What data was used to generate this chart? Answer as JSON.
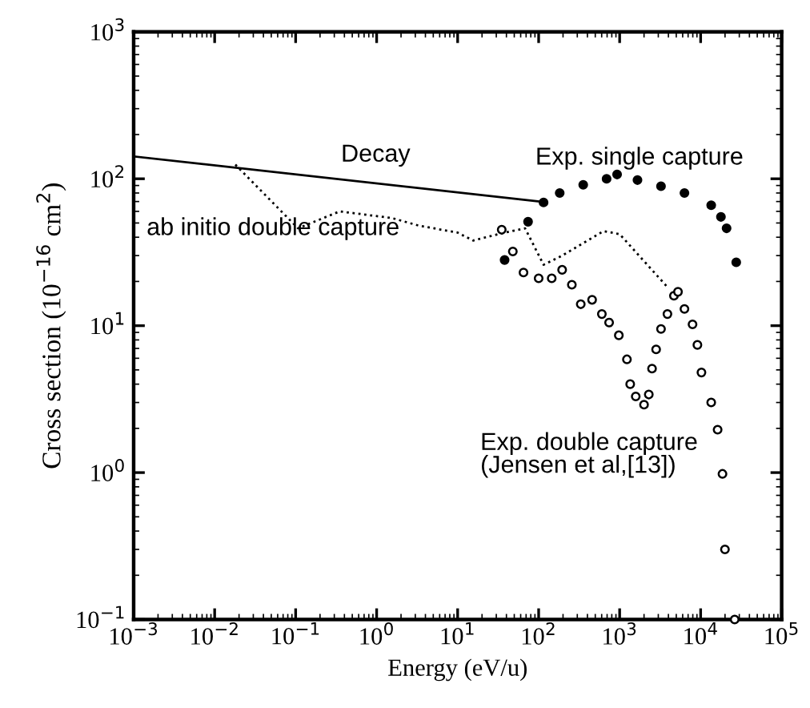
{
  "chart_data": {
    "type": "line",
    "xlabel": "Energy (eV/u)",
    "ylabel": "Cross section (10$^{−16}$ cm$^{2}$)",
    "log": "xy",
    "xlim": [
      0.001,
      100000
    ],
    "ylim": [
      0.1,
      1000
    ],
    "xticks": [
      {
        "value": 0.001,
        "label": "10$^{−3}$"
      },
      {
        "value": 0.01,
        "label": "10$^{−2}$"
      },
      {
        "value": 0.1,
        "label": "10$^{−1}$"
      },
      {
        "value": 1,
        "label": "10$^{0}$"
      },
      {
        "value": 10,
        "label": "10$^{1}$"
      },
      {
        "value": 100,
        "label": "10$^{2}$"
      },
      {
        "value": 1000,
        "label": "10$^{3}$"
      },
      {
        "value": 10000,
        "label": "10$^{4}$"
      },
      {
        "value": 100000,
        "label": "10$^{5}$"
      }
    ],
    "yticks": [
      {
        "value": 0.1,
        "label": "10$^{−1}$"
      },
      {
        "value": 1,
        "label": "10$^{0}$"
      },
      {
        "value": 10,
        "label": "10$^{1}$"
      },
      {
        "value": 100,
        "label": "10$^{2}$"
      },
      {
        "value": 1000,
        "label": "10$^{3}$"
      }
    ],
    "grid": false,
    "legend": false,
    "series": [
      {
        "color": "#000000",
        "line_style": "solid",
        "marker": "none",
        "x": [
          0.001,
          105
        ],
        "values": [
          142,
          70
        ]
      },
      {
        "color": "#000000",
        "line_style": "dotted",
        "marker": "none",
        "x": [
          0.018,
          0.107,
          0.35,
          1.55,
          3.3,
          10,
          15.5,
          38,
          68,
          115,
          195,
          630,
          1000,
          4000
        ],
        "values": [
          125,
          46,
          60,
          54,
          48,
          43,
          38,
          43,
          46,
          26,
          30,
          44,
          42,
          18
        ]
      },
      {
        "type": "scatter",
        "color": "#000000",
        "marker": "circle",
        "x": [
          38,
          74,
          115,
          182,
          355,
          690,
          930,
          1660,
          3240,
          6310,
          13500,
          17800,
          20900,
          27500
        ],
        "values": [
          28,
          51,
          69,
          80,
          91,
          100,
          107,
          98,
          89,
          80,
          66,
          55,
          46,
          27
        ]
      },
      {
        "type": "scatter",
        "color": "#ffffff",
        "marker": "circle",
        "x": [
          35,
          48,
          65,
          100,
          145,
          195,
          257,
          331,
          457,
          603,
          741,
          977,
          1230,
          1350,
          1580,
          2000,
          2290,
          2510,
          2820,
          3240,
          3890,
          4680,
          5250,
          6310,
          7940,
          9120,
          10230,
          13500,
          16200,
          18600,
          19950,
          26300
        ],
        "values": [
          45,
          32,
          23,
          21,
          21,
          24,
          19,
          14,
          15,
          12,
          10.5,
          8.6,
          5.9,
          4.0,
          3.3,
          2.9,
          3.4,
          5.1,
          6.9,
          9.5,
          12,
          16,
          17,
          13,
          10.2,
          7.4,
          4.8,
          3.0,
          1.96,
          0.98,
          0.3,
          0.1
        ]
      }
    ],
    "annotations": [
      "Decay",
      "ab initio double capture",
      "Exp. single capture",
      "Exp. double capture\n(Jensen et al,[13])"
    ]
  }
}
